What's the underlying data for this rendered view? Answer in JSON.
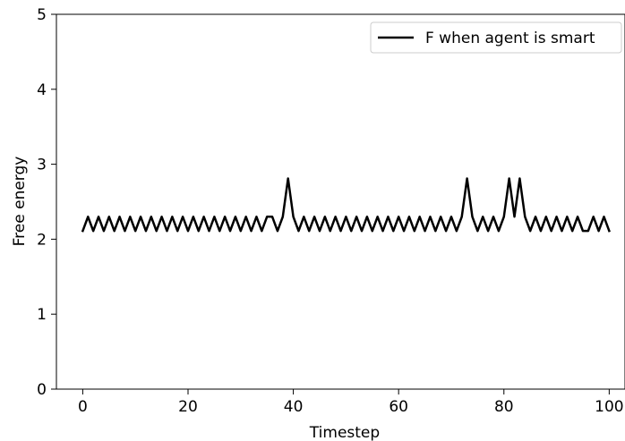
{
  "chart_data": {
    "type": "line",
    "title": "",
    "xlabel": "Timestep",
    "ylabel": "Free energy",
    "xlim": [
      -5,
      103
    ],
    "ylim": [
      0,
      5
    ],
    "xticks": [
      0,
      20,
      40,
      60,
      80,
      100
    ],
    "yticks": [
      0,
      1,
      2,
      3,
      4,
      5
    ],
    "grid": false,
    "legend_position": "upper right",
    "series": [
      {
        "name": "F when agent is smart",
        "color": "#000000",
        "x": [
          0,
          1,
          2,
          3,
          4,
          5,
          6,
          7,
          8,
          9,
          10,
          11,
          12,
          13,
          14,
          15,
          16,
          17,
          18,
          19,
          20,
          21,
          22,
          23,
          24,
          25,
          26,
          27,
          28,
          29,
          30,
          31,
          32,
          33,
          34,
          35,
          36,
          37,
          38,
          39,
          40,
          41,
          42,
          43,
          44,
          45,
          46,
          47,
          48,
          49,
          50,
          51,
          52,
          53,
          54,
          55,
          56,
          57,
          58,
          59,
          60,
          61,
          62,
          63,
          64,
          65,
          66,
          67,
          68,
          69,
          70,
          71,
          72,
          73,
          74,
          75,
          76,
          77,
          78,
          79,
          80,
          81,
          82,
          83,
          84,
          85,
          86,
          87,
          88,
          89,
          90,
          91,
          92,
          93,
          94,
          95,
          96,
          97,
          98,
          99,
          100
        ],
        "y": [
          2.11,
          2.3,
          2.11,
          2.3,
          2.11,
          2.3,
          2.11,
          2.3,
          2.11,
          2.3,
          2.11,
          2.3,
          2.11,
          2.3,
          2.11,
          2.3,
          2.11,
          2.3,
          2.11,
          2.3,
          2.11,
          2.3,
          2.11,
          2.3,
          2.11,
          2.3,
          2.11,
          2.3,
          2.11,
          2.3,
          2.11,
          2.3,
          2.11,
          2.3,
          2.11,
          2.3,
          2.3,
          2.11,
          2.3,
          2.81,
          2.3,
          2.11,
          2.3,
          2.11,
          2.3,
          2.11,
          2.3,
          2.11,
          2.3,
          2.11,
          2.3,
          2.11,
          2.3,
          2.11,
          2.3,
          2.11,
          2.3,
          2.11,
          2.3,
          2.11,
          2.3,
          2.11,
          2.3,
          2.11,
          2.3,
          2.11,
          2.3,
          2.11,
          2.3,
          2.11,
          2.3,
          2.11,
          2.3,
          2.81,
          2.3,
          2.11,
          2.3,
          2.11,
          2.3,
          2.11,
          2.3,
          2.81,
          2.3,
          2.81,
          2.3,
          2.11,
          2.3,
          2.11,
          2.3,
          2.11,
          2.3,
          2.11,
          2.3,
          2.11,
          2.3,
          2.11,
          2.11,
          2.3,
          2.11,
          2.3,
          2.11
        ]
      }
    ]
  }
}
